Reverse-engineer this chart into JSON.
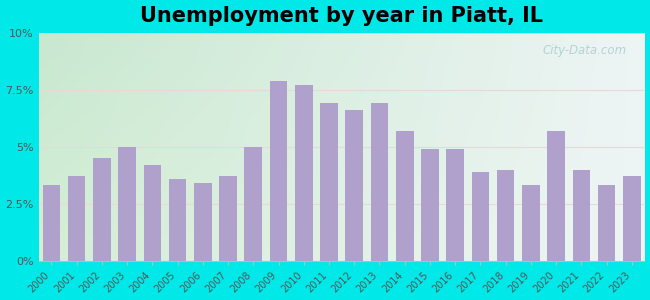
{
  "title": "Unemployment by year in Piatt, IL",
  "years": [
    2000,
    2001,
    2002,
    2003,
    2004,
    2005,
    2006,
    2007,
    2008,
    2009,
    2010,
    2011,
    2012,
    2013,
    2014,
    2015,
    2016,
    2017,
    2018,
    2019,
    2020,
    2021,
    2022,
    2023
  ],
  "values": [
    3.3,
    3.7,
    4.5,
    5.0,
    4.2,
    3.6,
    3.4,
    3.7,
    5.0,
    7.9,
    7.7,
    6.9,
    6.6,
    6.9,
    5.7,
    4.9,
    4.9,
    3.9,
    4.0,
    3.3,
    5.7,
    4.0,
    3.3,
    3.7
  ],
  "bar_color": "#b0a0cc",
  "background_outer": "#00e8e8",
  "grad_top_left": "#c8e8d0",
  "grad_top_right": "#e8f0f0",
  "grad_bottom": "#ddf0e0",
  "ylim": [
    0,
    10
  ],
  "yticks": [
    0,
    2.5,
    5.0,
    7.5,
    10.0
  ],
  "ytick_labels": [
    "0%",
    "2.5%",
    "5%",
    "7.5%",
    "10%"
  ],
  "title_fontsize": 15,
  "watermark_text": "City-Data.com",
  "grid_color": "#e0e8e0"
}
